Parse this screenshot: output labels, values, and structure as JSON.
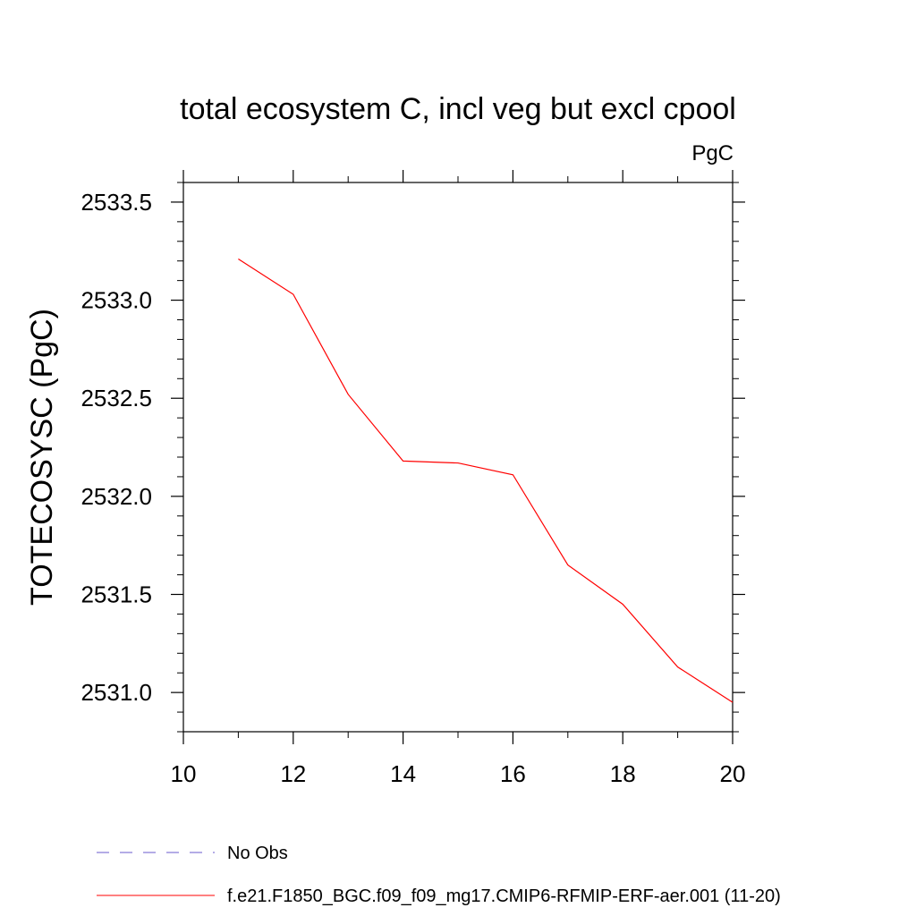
{
  "chart_data": {
    "type": "line",
    "title": "total ecosystem C, incl veg but excl cpool",
    "units_label": "PgC",
    "ylabel": "TOTECOSYSC  (PgC)",
    "xlabel": "",
    "xlim": [
      10,
      20
    ],
    "ylim": [
      2530.8,
      2533.6
    ],
    "x_ticks": [
      10,
      12,
      14,
      16,
      18,
      20
    ],
    "x_tick_labels": [
      "10",
      "12",
      "14",
      "16",
      "18",
      "20"
    ],
    "x_minor_step": 1,
    "y_ticks": [
      2531.0,
      2531.5,
      2532.0,
      2532.5,
      2533.0,
      2533.5
    ],
    "y_tick_labels": [
      "2531.0",
      "2531.5",
      "2532.0",
      "2532.5",
      "2533.0",
      "2533.5"
    ],
    "y_minor_step": 0.1,
    "series": [
      {
        "name": "f.e21.F1850_BGC.f09_f09_mg17.CMIP6-RFMIP-ERF-aer.001 (11-20)",
        "color": "#ff0000",
        "x": [
          11,
          12,
          13,
          14,
          15,
          16,
          17,
          18,
          19,
          20
        ],
        "values": [
          2533.21,
          2533.03,
          2532.52,
          2532.18,
          2532.17,
          2532.11,
          2531.65,
          2531.45,
          2531.13,
          2530.95
        ]
      }
    ],
    "legend": {
      "position": "bottom",
      "entries": [
        {
          "label": "No Obs",
          "style": "dashed",
          "color": "#6a5acd"
        },
        {
          "label": "f.e21.F1850_BGC.f09_f09_mg17.CMIP6-RFMIP-ERF-aer.001 (11-20)",
          "style": "solid",
          "color": "#ff0000"
        }
      ]
    }
  }
}
